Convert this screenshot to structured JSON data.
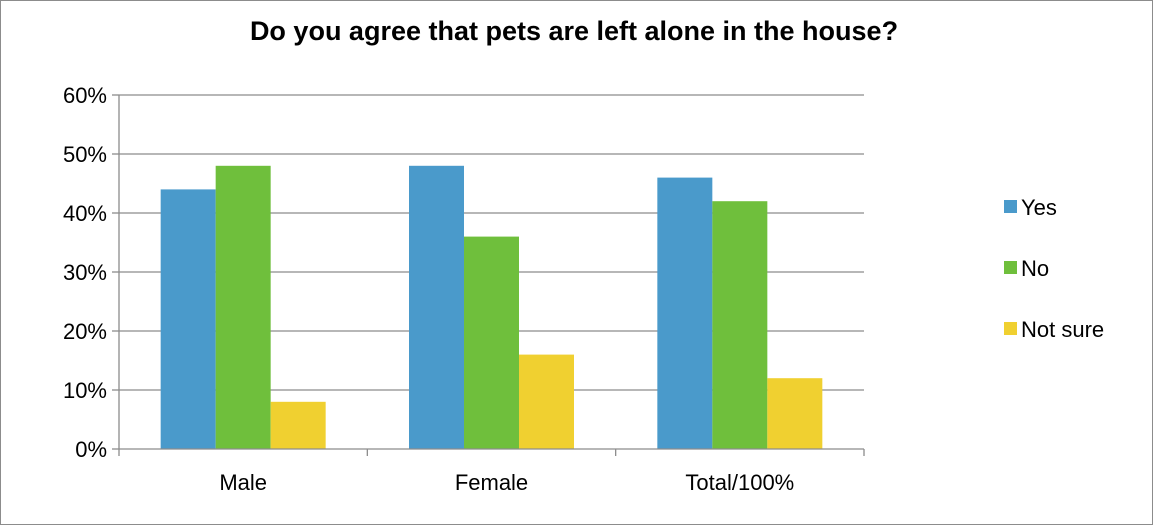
{
  "chart_data": {
    "type": "bar",
    "title": "Do you agree that pets are left alone in the house?",
    "xlabel": "",
    "ylabel": "",
    "categories": [
      "Male",
      "Female",
      "Total/100%"
    ],
    "series": [
      {
        "name": "Yes",
        "values": [
          44,
          48,
          46
        ],
        "color": "#4a9acb"
      },
      {
        "name": "No",
        "values": [
          48,
          36,
          42
        ],
        "color": "#6fbf3c"
      },
      {
        "name": "Not sure",
        "values": [
          8,
          16,
          12
        ],
        "color": "#f0d030"
      }
    ],
    "ylim": [
      0,
      60
    ],
    "yticks": [
      0,
      10,
      20,
      30,
      40,
      50,
      60
    ],
    "ytick_labels": [
      "0%",
      "10%",
      "20%",
      "30%",
      "40%",
      "50%",
      "60%"
    ],
    "grid": true,
    "legend_position": "right"
  }
}
